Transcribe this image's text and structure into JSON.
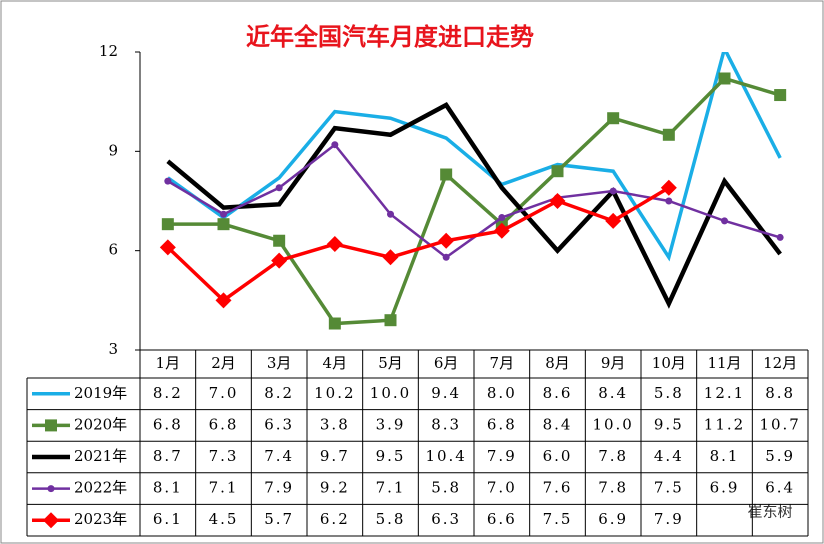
{
  "chart_data": {
    "type": "line",
    "title": "近年全国汽车月度进口走势",
    "categories": [
      "1月",
      "2月",
      "3月",
      "4月",
      "5月",
      "6月",
      "7月",
      "8月",
      "9月",
      "10月",
      "11月",
      "12月"
    ],
    "ylim": [
      3,
      12
    ],
    "yticks": [
      3,
      6,
      9,
      12
    ],
    "watermark": "崔东树",
    "series": [
      {
        "name": "2019年",
        "color": "#1aaee6",
        "marker": "none",
        "values": [
          8.2,
          7.0,
          8.2,
          10.2,
          10.0,
          9.4,
          8.0,
          8.6,
          8.4,
          5.8,
          12.1,
          8.8
        ],
        "value_labels": [
          "8.2",
          "7.0",
          "8.2",
          "10.2",
          "10.0",
          "9.4",
          "8.0",
          "8.6",
          "8.4",
          "5.8",
          "12.1",
          "8.8"
        ]
      },
      {
        "name": "2020年",
        "color": "#558a36",
        "marker": "square",
        "values": [
          6.8,
          6.8,
          6.3,
          3.8,
          3.9,
          8.3,
          6.8,
          8.4,
          10.0,
          9.5,
          11.2,
          10.7
        ],
        "value_labels": [
          "6.8",
          "6.8",
          "6.3",
          "3.8",
          "3.9",
          "8.3",
          "6.8",
          "8.4",
          "10.0",
          "9.5",
          "11.2",
          "10.7"
        ]
      },
      {
        "name": "2021年",
        "color": "#000000",
        "marker": "none",
        "values": [
          8.7,
          7.3,
          7.4,
          9.7,
          9.5,
          10.4,
          7.9,
          6.0,
          7.8,
          4.4,
          8.1,
          5.9
        ],
        "value_labels": [
          "8.7",
          "7.3",
          "7.4",
          "9.7",
          "9.5",
          "10.4",
          "7.9",
          "6.0",
          "7.8",
          "4.4",
          "8.1",
          "5.9"
        ]
      },
      {
        "name": "2022年",
        "color": "#7030a0",
        "marker": "circle",
        "values": [
          8.1,
          7.1,
          7.9,
          9.2,
          7.1,
          5.8,
          7.0,
          7.6,
          7.8,
          7.5,
          6.9,
          6.4
        ],
        "value_labels": [
          "8.1",
          "7.1",
          "7.9",
          "9.2",
          "7.1",
          "5.8",
          "7.0",
          "7.6",
          "7.8",
          "7.5",
          "6.9",
          "6.4"
        ]
      },
      {
        "name": "2023年",
        "color": "#ff0000",
        "marker": "diamond",
        "values": [
          6.1,
          4.5,
          5.7,
          6.2,
          5.8,
          6.3,
          6.6,
          7.5,
          6.9,
          7.9,
          null,
          null
        ],
        "value_labels": [
          "6.1",
          "4.5",
          "5.7",
          "6.2",
          "5.8",
          "6.3",
          "6.6",
          "7.5",
          "6.9",
          "7.9",
          null,
          null
        ]
      }
    ]
  }
}
